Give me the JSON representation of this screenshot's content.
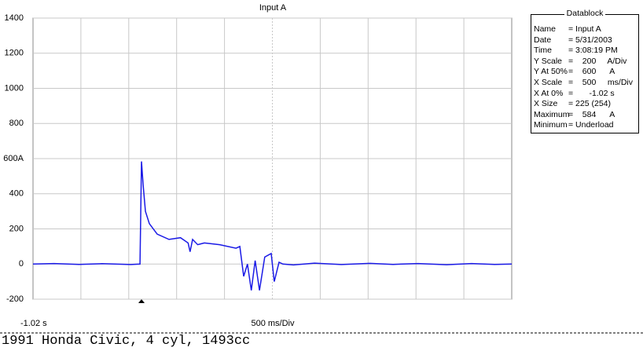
{
  "chart_data": {
    "type": "line",
    "title": "Input A",
    "x": [
      -1.02,
      -0.8,
      -0.54,
      -0.3,
      0.0,
      0.097,
      0.113,
      0.13,
      0.154,
      0.195,
      0.277,
      0.4,
      0.52,
      0.6,
      0.62,
      0.647,
      0.7,
      0.77,
      0.93,
      1.1,
      1.14,
      1.18,
      1.22,
      1.26,
      1.3,
      1.345,
      1.4,
      1.468,
      1.5,
      1.55,
      1.59,
      1.7,
      1.92,
      2.2,
      2.5,
      2.74,
      3.0,
      3.3,
      3.56,
      3.8,
      3.98
    ],
    "values": [
      0,
      3,
      -2,
      2,
      -3,
      0,
      584,
      450,
      300,
      230,
      170,
      140,
      150,
      120,
      70,
      140,
      110,
      120,
      110,
      90,
      100,
      -70,
      0,
      -150,
      20,
      -150,
      40,
      60,
      -100,
      10,
      0,
      -5,
      5,
      -3,
      4,
      -2,
      3,
      -4,
      3,
      -2,
      0
    ],
    "color": "#1a1ae6",
    "xlim": [
      -1.02,
      3.98
    ],
    "x_start_label": "-1.02 s",
    "x_scale_label": "500 ms/Div",
    "ylim": [
      -200,
      1400
    ],
    "yticks": [
      -200,
      0,
      200,
      400,
      {
        "value": 600,
        "label": "600A"
      },
      800,
      1000,
      1200,
      1400
    ],
    "grid": true
  },
  "datablock": {
    "title": "Datablock",
    "rows": [
      [
        "Name",
        "= Input A"
      ],
      [
        "Date",
        "= 5/31/2003"
      ],
      [
        "Time",
        "= 3:08:19 PM"
      ],
      [
        "Y Scale",
        "=    200     A/Div"
      ],
      [
        "Y At 50%",
        "=    600      A"
      ],
      [
        "X Scale",
        "=    500     ms/Div"
      ],
      [
        "X At 0%",
        "=       -1.02 s"
      ],
      [
        "X Size",
        "= 225 (254)"
      ],
      [
        "Maximum",
        "=    584      A"
      ],
      [
        "Minimum",
        "= Underload"
      ]
    ]
  },
  "footer": "1991 Honda Civic, 4 cyl, 1493cc"
}
